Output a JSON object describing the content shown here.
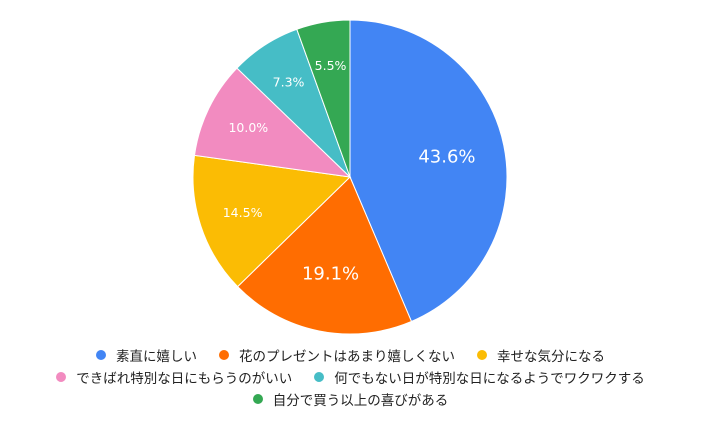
{
  "chart_data": {
    "type": "pie",
    "categories": [
      "素直に嬉しい",
      "花のプレゼントはあまり嬉しくない",
      "幸せな気分になる",
      "できばれ特別な日にもらうのがいい",
      "何でもない日が特別な日になるようでワクワクする",
      "自分で買う以上の喜びがある"
    ],
    "values": [
      43.6,
      19.1,
      14.5,
      10.0,
      7.3,
      5.5
    ],
    "labels": [
      "43.6%",
      "19.1%",
      "14.5%",
      "10.0%",
      "7.3%",
      "5.5%"
    ],
    "colors": [
      "#4285f4",
      "#ff6d01",
      "#fbbc04",
      "#f28bc0",
      "#46bdc6",
      "#34a853"
    ],
    "legend_position": "bottom"
  }
}
